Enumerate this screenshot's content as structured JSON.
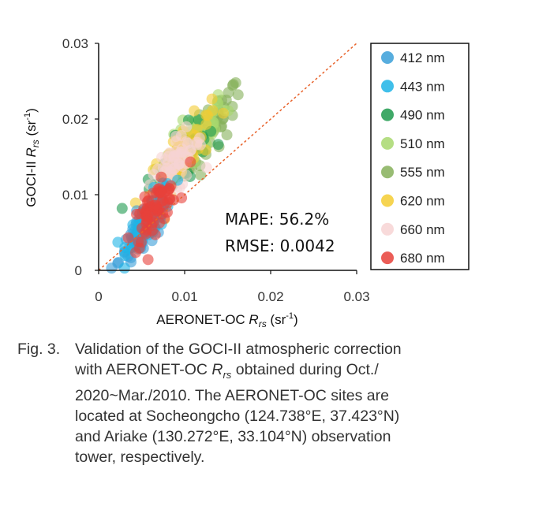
{
  "chart_data": {
    "type": "scatter",
    "xlabel_main": "AERONET-OC ",
    "xlabel_var": "R",
    "xlabel_sub": "rs",
    "xlabel_unit_open": " (sr",
    "xlabel_unit_exp": "-1",
    "xlabel_unit_close": ")",
    "ylabel_main": "GOCI-II ",
    "ylabel_var": "R",
    "ylabel_sub": "rs",
    "ylabel_unit_open": " (sr",
    "ylabel_unit_exp": "-1",
    "ylabel_unit_close": ")",
    "xlim": [
      0,
      0.03
    ],
    "ylim": [
      0,
      0.03
    ],
    "x_ticks": [
      "0",
      "0.01",
      "0.02",
      "0.03"
    ],
    "y_ticks": [
      "0",
      "0.01",
      "0.02",
      "0.03"
    ],
    "one_to_one_line": true,
    "grid": false,
    "legend_placement": "right",
    "annotations": [
      "MAPE: 56.2%",
      "RMSE: 0.0042"
    ],
    "series": [
      {
        "name": "412 nm",
        "color": "#3a9fd8",
        "center": [
          0.005,
          0.0045
        ],
        "spread": [
          0.0022,
          0.0025
        ]
      },
      {
        "name": "443 nm",
        "color": "#1eb4e6",
        "center": [
          0.006,
          0.007
        ],
        "spread": [
          0.0022,
          0.0028
        ]
      },
      {
        "name": "490 nm",
        "color": "#1e9a4e",
        "center": [
          0.009,
          0.014
        ],
        "spread": [
          0.003,
          0.0035
        ]
      },
      {
        "name": "510 nm",
        "color": "#a8d86e",
        "center": [
          0.011,
          0.017
        ],
        "spread": [
          0.0032,
          0.0035
        ]
      },
      {
        "name": "555 nm",
        "color": "#86b05a",
        "center": [
          0.0125,
          0.018
        ],
        "spread": [
          0.0035,
          0.0035
        ]
      },
      {
        "name": "620 nm",
        "color": "#f4cc32",
        "center": [
          0.0095,
          0.015
        ],
        "spread": [
          0.003,
          0.0035
        ]
      },
      {
        "name": "660 nm",
        "color": "#f7d3d3",
        "center": [
          0.0085,
          0.013
        ],
        "spread": [
          0.003,
          0.0035
        ]
      },
      {
        "name": "680 nm",
        "color": "#e8413a",
        "center": [
          0.0065,
          0.008
        ],
        "spread": [
          0.0022,
          0.0028
        ]
      }
    ]
  },
  "caption": {
    "label": "Fig. 3.",
    "line1": "Validation of the GOCI-II atmospheric correction",
    "line2_pre": "with AERONET-OC ",
    "line2_var": "R",
    "line2_sub": "rs",
    "line2_post": " obtained during Oct./",
    "line3": "2020~Mar./2010. The AERONET-OC sites are",
    "line4": "located at Socheongcho (124.738°E, 37.423°N)",
    "line5": "and Ariake (130.272°E, 33.104°N) observation",
    "line6": "tower, respectively."
  }
}
